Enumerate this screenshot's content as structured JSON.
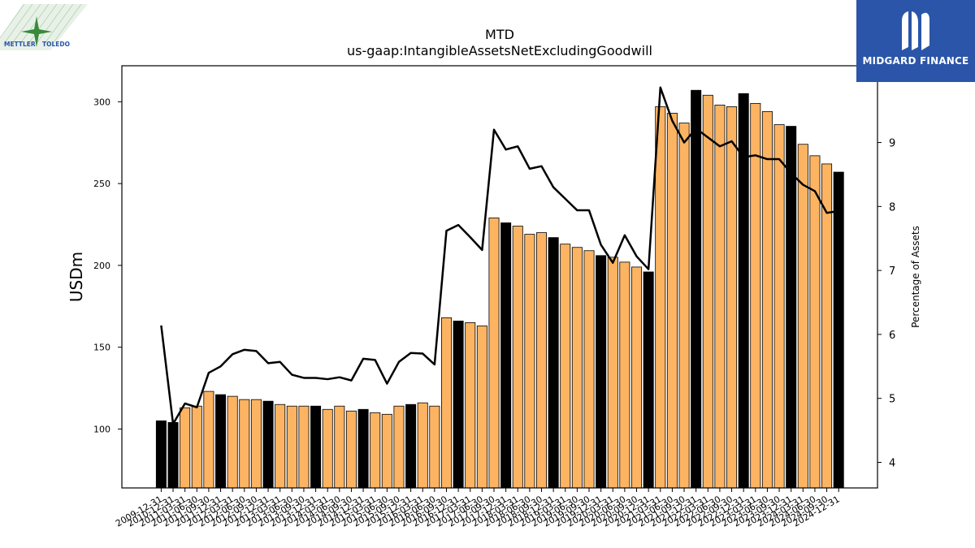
{
  "chart_data": {
    "type": "bar",
    "title": "MTD",
    "subtitle": "us-gaap:IntangibleAssetsNetExcludingGoodwill",
    "ylabel": "USDm",
    "y2label": "Percentage of Assets",
    "ylim": [
      64,
      322
    ],
    "y2lim": [
      3.6,
      10.2
    ],
    "yticks": [
      100,
      150,
      200,
      250,
      300
    ],
    "y2ticks": [
      4,
      5,
      6,
      7,
      8,
      9
    ],
    "bar_color": "#fdb462",
    "highlight_color": "#000000",
    "line_color": "#000000",
    "categories": [
      "2009-12-31",
      "2010-12-31",
      "2011-03-31",
      "2011-06-30",
      "2011-09-30",
      "2011-12-31",
      "2012-03-31",
      "2012-06-30",
      "2012-09-30",
      "2012-12-31",
      "2013-03-31",
      "2013-06-30",
      "2013-09-30",
      "2013-12-31",
      "2014-03-31",
      "2014-06-30",
      "2014-09-30",
      "2014-12-31",
      "2015-03-31",
      "2015-06-30",
      "2015-09-30",
      "2015-12-31",
      "2016-03-31",
      "2016-06-30",
      "2016-09-30",
      "2016-12-31",
      "2017-03-31",
      "2017-06-30",
      "2017-09-30",
      "2017-12-31",
      "2018-03-31",
      "2018-06-30",
      "2018-09-30",
      "2018-12-31",
      "2019-03-31",
      "2019-06-30",
      "2019-09-30",
      "2019-12-31",
      "2020-03-31",
      "2020-06-30",
      "2020-09-30",
      "2020-12-31",
      "2021-03-31",
      "2021-06-30",
      "2021-09-30",
      "2021-12-31",
      "2022-03-31",
      "2022-06-30",
      "2022-09-30",
      "2022-12-31",
      "2023-03-31",
      "2023-06-30",
      "2023-09-30",
      "2023-12-31",
      "2024-03-31",
      "2024-06-30",
      "2024-09-30",
      "2024-12-31"
    ],
    "series": [
      {
        "values": [
          105,
          104,
          113,
          114,
          123,
          121,
          120,
          118,
          118,
          117,
          115,
          114,
          114,
          114,
          112,
          114,
          111,
          112,
          110,
          109,
          114,
          115,
          116,
          114,
          168,
          166,
          165,
          163,
          229,
          226,
          224,
          219,
          220,
          217,
          213,
          211,
          209,
          206,
          205,
          202,
          199,
          196,
          297,
          293,
          287,
          307,
          304,
          298,
          297,
          305,
          299,
          294,
          286,
          285,
          274,
          267,
          262,
          257
        ],
        "highlight": [
          1,
          1,
          0,
          0,
          0,
          1,
          0,
          0,
          0,
          1,
          0,
          0,
          0,
          1,
          0,
          0,
          0,
          1,
          0,
          0,
          0,
          1,
          0,
          0,
          0,
          1,
          0,
          0,
          0,
          1,
          0,
          0,
          0,
          1,
          0,
          0,
          0,
          1,
          0,
          0,
          0,
          1,
          0,
          0,
          0,
          1,
          0,
          0,
          0,
          1,
          0,
          0,
          0,
          1,
          0,
          0,
          0,
          1
        ]
      },
      {
        "axis": "right",
        "values": [
          6.14,
          4.6,
          4.92,
          4.86,
          5.4,
          5.5,
          5.69,
          5.76,
          5.74,
          5.55,
          5.57,
          5.37,
          5.32,
          5.32,
          5.3,
          5.33,
          5.28,
          5.62,
          5.6,
          5.23,
          5.57,
          5.71,
          5.7,
          5.53,
          7.62,
          7.71,
          7.52,
          7.32,
          9.2,
          8.89,
          8.94,
          8.59,
          8.63,
          8.3,
          8.12,
          7.94,
          7.94,
          7.4,
          7.12,
          7.55,
          7.22,
          7.02,
          9.86,
          9.34,
          9.0,
          9.22,
          9.08,
          8.94,
          9.02,
          8.77,
          8.8,
          8.74,
          8.74,
          8.52,
          8.34,
          8.24,
          7.9,
          7.93
        ]
      }
    ]
  },
  "logos": {
    "left": {
      "text_a": "METTLER",
      "text_b": "TOLEDO",
      "color": "#2b55a8"
    },
    "right": {
      "text": "MIDGARD FINANCE",
      "bg": "#2b55a8"
    }
  }
}
